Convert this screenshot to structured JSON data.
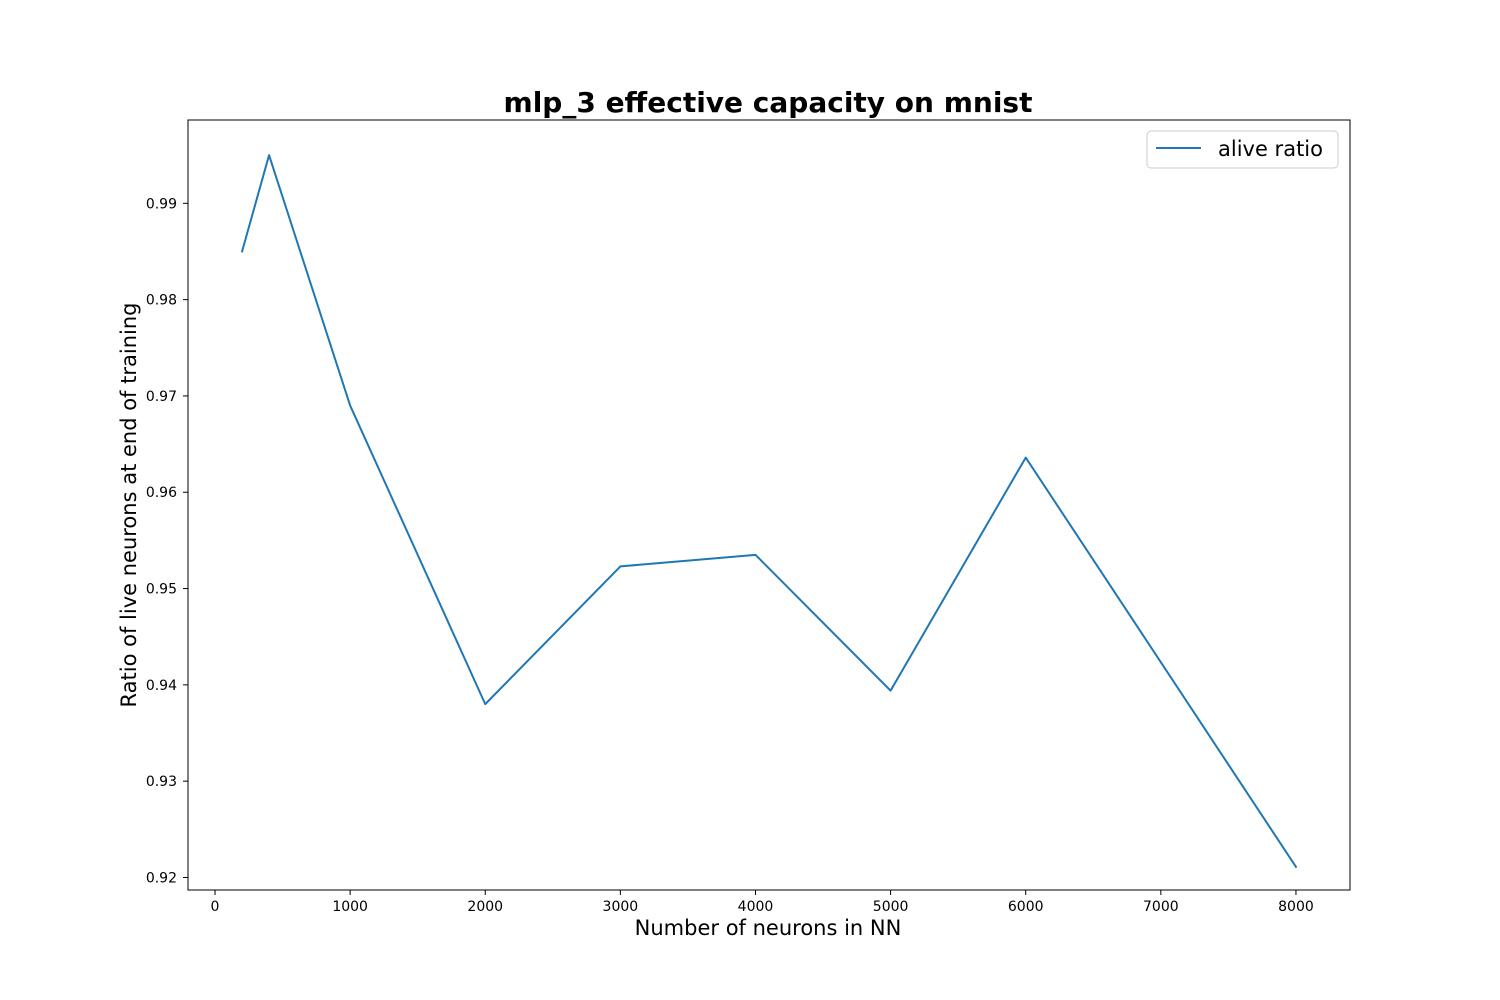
{
  "chart_data": {
    "type": "line",
    "title": "mlp_3 effective capacity on mnist",
    "xlabel": "Number of neurons in NN",
    "ylabel": "Ratio of live neurons at end of training",
    "xlim": [
      -200,
      8400
    ],
    "ylim": [
      0.9187,
      0.99865
    ],
    "xticks": [
      0,
      1000,
      2000,
      3000,
      4000,
      5000,
      6000,
      7000,
      8000
    ],
    "xtick_labels": [
      "0",
      "1000",
      "2000",
      "3000",
      "4000",
      "5000",
      "6000",
      "7000",
      "8000"
    ],
    "yticks": [
      0.92,
      0.93,
      0.94,
      0.95,
      0.96,
      0.97,
      0.98,
      0.99
    ],
    "ytick_labels": [
      "0.92",
      "0.93",
      "0.94",
      "0.95",
      "0.96",
      "0.97",
      "0.98",
      "0.99"
    ],
    "grid": false,
    "legend_position": "top-right",
    "series": [
      {
        "name": "alive ratio",
        "color": "#1f77b4",
        "x": [
          200,
          400,
          1000,
          2000,
          3000,
          4000,
          5000,
          6000,
          8000
        ],
        "y": [
          0.985,
          0.995,
          0.969,
          0.938,
          0.9523,
          0.9535,
          0.9394,
          0.9636,
          0.9211
        ]
      }
    ]
  }
}
